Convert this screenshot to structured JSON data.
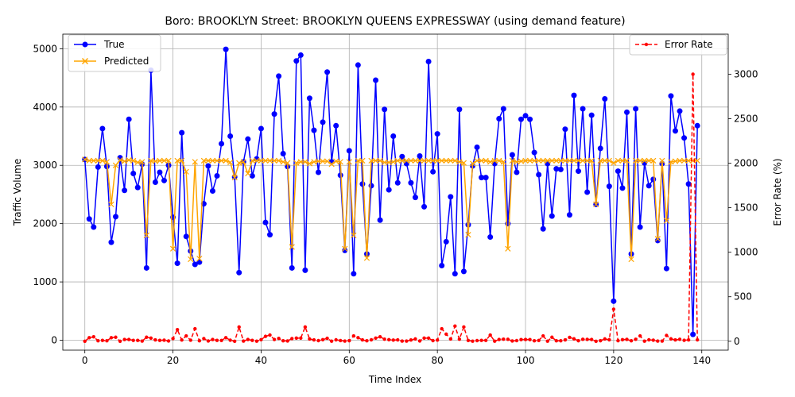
{
  "chart_data": {
    "type": "line",
    "title": "Boro: BROOKLYN Street: BROOKLYN QUEENS EXPRESSWAY (using demand feature)",
    "xlabel": "Time Index",
    "ylabel_left": "Traffic Volume",
    "ylabel_right": "Error Rate (%)",
    "xlim": [
      -5,
      146
    ],
    "ylim_left": [
      -170,
      5250
    ],
    "ylim_right": [
      -100,
      3450
    ],
    "x_ticks": [
      0,
      20,
      40,
      60,
      80,
      100,
      120,
      140
    ],
    "y_ticks_left": [
      0,
      1000,
      2000,
      3000,
      4000,
      5000
    ],
    "y_ticks_right": [
      0,
      500,
      1000,
      1500,
      2000,
      2500,
      3000
    ],
    "grid": true,
    "legend_left": {
      "placement": "upper-left",
      "entries": [
        "True",
        "Predicted"
      ]
    },
    "legend_right": {
      "placement": "upper-right",
      "entries": [
        "Error Rate"
      ]
    },
    "series": [
      {
        "name": "True",
        "axis": "left",
        "color": "#0000ff",
        "marker": "circle",
        "values": [
          3100,
          2080,
          1940,
          2970,
          3630,
          2980,
          1680,
          2120,
          3130,
          2570,
          3790,
          2860,
          2620,
          3020,
          1240,
          4630,
          2710,
          2880,
          2740,
          3000,
          2110,
          1320,
          3560,
          1780,
          1530,
          1300,
          1340,
          2340,
          2990,
          2560,
          2820,
          3370,
          4990,
          3500,
          2800,
          1160,
          3060,
          3450,
          2820,
          3110,
          3630,
          2020,
          1810,
          3880,
          4530,
          3200,
          2980,
          1240,
          4790,
          4890,
          1200,
          4150,
          3600,
          2880,
          3740,
          4600,
          3060,
          3680,
          2830,
          1540,
          3250,
          1140,
          4720,
          2680,
          1480,
          2650,
          4460,
          2060,
          3960,
          2580,
          3500,
          2700,
          3150,
          3030,
          2700,
          2450,
          3160,
          2290,
          4780,
          2890,
          3540,
          1280,
          1690,
          2460,
          1140,
          3960,
          1180,
          1980,
          2990,
          3310,
          2790,
          2790,
          1770,
          3030,
          3800,
          3970,
          2000,
          3180,
          2880,
          3790,
          3850,
          3790,
          3220,
          2840,
          1910,
          3030,
          2130,
          2940,
          2930,
          3620,
          2150,
          4200,
          2900,
          3970,
          2540,
          3860,
          2330,
          3290,
          4140,
          2640,
          670,
          2900,
          2610,
          3910,
          1480,
          3970,
          1940,
          3040,
          2650,
          2760,
          1710,
          3030,
          1230,
          4190,
          3590,
          3930,
          3470,
          2680,
          100,
          3680
        ]
      },
      {
        "name": "Predicted",
        "axis": "left",
        "color": "#ffa500",
        "marker": "x",
        "values": [
          3100,
          3080,
          3080,
          3080,
          3080,
          3060,
          2330,
          3000,
          3090,
          3070,
          3090,
          3080,
          3050,
          3060,
          1800,
          3080,
          3070,
          3080,
          3080,
          3080,
          1570,
          3080,
          3080,
          2890,
          1390,
          3060,
          1400,
          3080,
          3080,
          3080,
          3080,
          3080,
          3080,
          3050,
          2790,
          3040,
          3060,
          2860,
          3080,
          3080,
          3080,
          3080,
          3080,
          3080,
          3080,
          3060,
          3040,
          1600,
          3040,
          3060,
          3060,
          3030,
          3060,
          3070,
          3070,
          3070,
          3020,
          3070,
          3060,
          1570,
          3060,
          1800,
          3080,
          3080,
          1410,
          3080,
          3080,
          3080,
          3050,
          3050,
          3060,
          3080,
          3080,
          3080,
          3080,
          3080,
          3080,
          3080,
          3080,
          3080,
          3080,
          3080,
          3080,
          3080,
          3080,
          3060,
          3040,
          1810,
          3030,
          3080,
          3080,
          3080,
          3060,
          3080,
          3080,
          3060,
          1570,
          3080,
          3060,
          3070,
          3080,
          3080,
          3080,
          3080,
          3080,
          3080,
          3080,
          3080,
          3080,
          3080,
          3080,
          3080,
          3080,
          3080,
          3080,
          3080,
          2330,
          3080,
          3080,
          3080,
          3040,
          3080,
          3080,
          3080,
          1390,
          3080,
          3080,
          3080,
          3080,
          3080,
          1740,
          3080,
          2050,
          3060,
          3070,
          3080,
          3080,
          3080,
          3080,
          3080
        ]
      },
      {
        "name": "Error Rate",
        "axis": "right",
        "color": "#ff0000",
        "style": "dashed",
        "marker": "dot",
        "values": [
          0,
          40,
          50,
          5,
          10,
          5,
          40,
          45,
          0,
          20,
          20,
          10,
          10,
          2,
          45,
          35,
          15,
          10,
          12,
          3,
          30,
          130,
          14,
          60,
          12,
          140,
          5,
          30,
          3,
          20,
          10,
          9,
          40,
          12,
          0,
          160,
          2,
          20,
          10,
          1,
          18,
          55,
          70,
          20,
          32,
          5,
          3,
          30,
          35,
          35,
          160,
          25,
          15,
          7,
          18,
          33,
          1,
          16,
          8,
          2,
          6,
          60,
          40,
          15,
          5,
          16,
          35,
          50,
          23,
          18,
          13,
          15,
          2,
          2,
          14,
          26,
          3,
          35,
          35,
          7,
          13,
          140,
          80,
          25,
          170,
          23,
          160,
          9,
          1,
          7,
          10,
          10,
          70,
          1,
          20,
          23,
          22,
          3,
          7,
          19,
          20,
          19,
          5,
          9,
          60,
          1,
          45,
          5,
          5,
          15,
          43,
          27,
          6,
          22,
          21,
          20,
          0,
          6,
          26,
          17,
          360,
          6,
          18,
          21,
          5,
          22,
          60,
          1,
          16,
          12,
          2,
          2,
          65,
          27,
          15,
          22,
          11,
          15,
          3000,
          16
        ]
      }
    ]
  }
}
